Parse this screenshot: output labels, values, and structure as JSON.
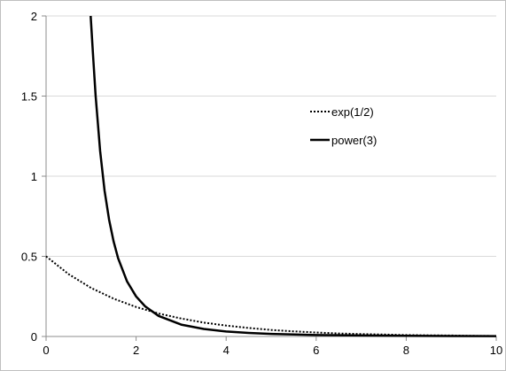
{
  "chart_data": {
    "type": "line",
    "title": "",
    "xlabel": "",
    "ylabel": "",
    "xlim": [
      0,
      10
    ],
    "ylim": [
      0,
      2
    ],
    "x_ticks": [
      0,
      2,
      4,
      6,
      8,
      10
    ],
    "y_ticks": [
      0,
      0.5,
      1,
      1.5,
      2
    ],
    "x_tick_labels": [
      "0",
      "2",
      "4",
      "6",
      "8",
      "10"
    ],
    "y_tick_labels": [
      "0",
      "0.5",
      "1",
      "1.5",
      "2"
    ],
    "grid": "horizontal",
    "legend_position": "right",
    "series": [
      {
        "name": "exp(1/2)",
        "style": "dotted",
        "color": "#000000",
        "x": [
          0,
          0.5,
          1,
          1.5,
          2,
          2.5,
          3,
          3.5,
          4,
          4.5,
          5,
          5.5,
          6,
          6.5,
          7,
          7.5,
          8,
          8.5,
          9,
          9.5,
          10
        ],
        "y": [
          0.5,
          0.389,
          0.303,
          0.236,
          0.184,
          0.143,
          0.112,
          0.087,
          0.068,
          0.053,
          0.041,
          0.032,
          0.025,
          0.019,
          0.015,
          0.012,
          0.009,
          0.007,
          0.006,
          0.004,
          0.003
        ]
      },
      {
        "name": "power(3)",
        "style": "solid",
        "color": "#000000",
        "x": [
          0.99,
          1.05,
          1.1,
          1.2,
          1.3,
          1.4,
          1.5,
          1.6,
          1.8,
          2,
          2.2,
          2.5,
          3,
          3.5,
          4,
          4.5,
          5,
          6,
          7,
          8,
          9,
          10
        ],
        "y": [
          2.0,
          1.728,
          1.503,
          1.157,
          0.91,
          0.729,
          0.593,
          0.488,
          0.343,
          0.25,
          0.188,
          0.128,
          0.074,
          0.047,
          0.031,
          0.022,
          0.016,
          0.009,
          0.006,
          0.004,
          0.003,
          0.002
        ]
      }
    ]
  }
}
